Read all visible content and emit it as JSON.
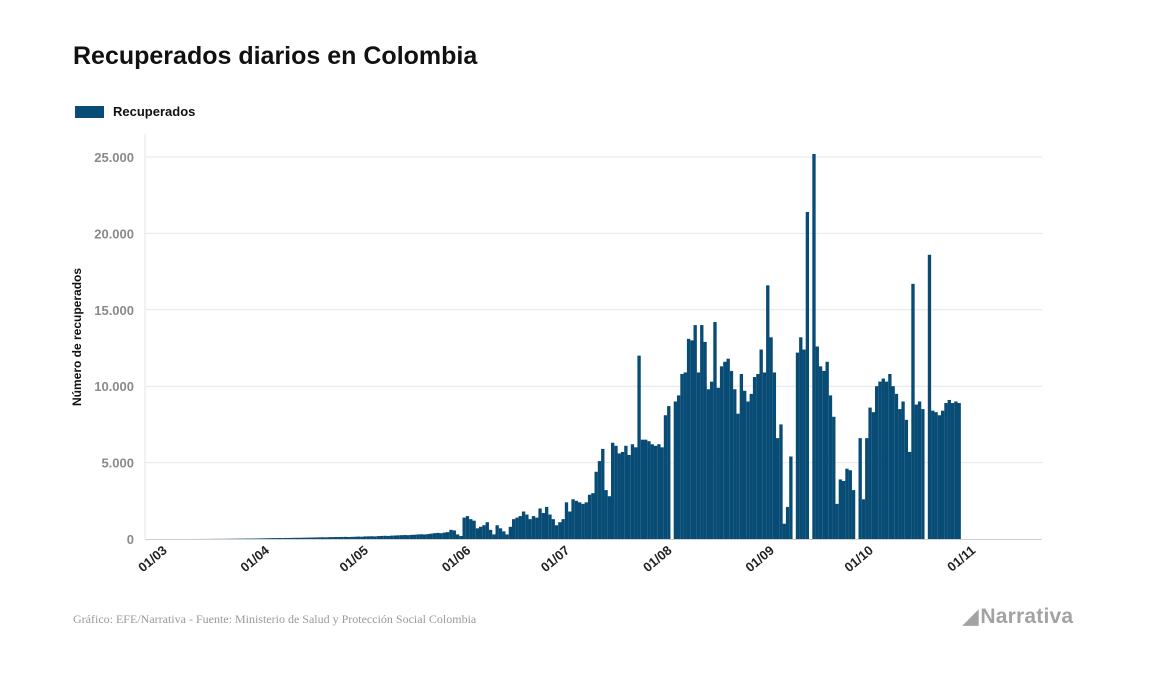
{
  "title": "Recuperados diarios en Colombia",
  "legend": {
    "label": "Recuperados",
    "color": "#084c75"
  },
  "footer": {
    "source": "Gráfico: EFE/Narrativa - Fuente: Ministerio de Salud y Protección Social Colombia",
    "logo": "Narrativa"
  },
  "chart_data": {
    "type": "bar",
    "x_start_date": "2020-03-01",
    "x_end_date": "2020-11-07",
    "xtick_labels": [
      "01/03",
      "01/04",
      "01/05",
      "01/06",
      "01/07",
      "01/08",
      "01/09",
      "01/10",
      "01/11"
    ],
    "ylabel": "Número de recuperados",
    "ylim": [
      0,
      25000
    ],
    "yticks": [
      0,
      5000,
      10000,
      15000,
      20000,
      25000
    ],
    "ytick_labels": [
      "0",
      "5.000",
      "10.000",
      "15.000",
      "20.000",
      "25.000"
    ],
    "grid": true,
    "series": [
      {
        "name": "Recuperados",
        "color": "#084c75",
        "values": [
          0,
          0,
          0,
          0,
          0,
          0,
          0,
          0,
          0,
          0,
          0,
          0,
          0,
          2,
          2,
          3,
          3,
          5,
          5,
          8,
          10,
          10,
          12,
          15,
          15,
          20,
          20,
          25,
          25,
          30,
          30,
          35,
          35,
          40,
          45,
          50,
          55,
          60,
          60,
          65,
          60,
          70,
          70,
          75,
          80,
          80,
          85,
          90,
          95,
          100,
          100,
          110,
          115,
          110,
          120,
          125,
          130,
          130,
          135,
          140,
          130,
          140,
          150,
          160,
          150,
          170,
          175,
          180,
          170,
          190,
          200,
          210,
          200,
          220,
          230,
          240,
          250,
          260,
          250,
          270,
          280,
          300,
          310,
          300,
          320,
          350,
          380,
          400,
          380,
          420,
          450,
          600,
          560,
          300,
          200,
          1400,
          1500,
          1300,
          1200,
          700,
          800,
          900,
          1100,
          600,
          300,
          900,
          700,
          500,
          300,
          800,
          1300,
          1400,
          1500,
          1800,
          1600,
          1300,
          1500,
          1400,
          2000,
          1700,
          2100,
          1600,
          1300,
          900,
          1100,
          1300,
          2400,
          1800,
          2600,
          2500,
          2400,
          2300,
          2400,
          2900,
          3000,
          4400,
          5100,
          5900,
          3200,
          2800,
          6300,
          6100,
          5600,
          5700,
          6100,
          5500,
          6200,
          6000,
          12000,
          6500,
          6500,
          6400,
          6200,
          6100,
          6200,
          6000,
          8100,
          8700,
          0,
          9000,
          9400,
          10800,
          10900,
          13100,
          13000,
          14000,
          10900,
          14000,
          12900,
          9800,
          10300,
          14200,
          9900,
          11300,
          11600,
          11800,
          11000,
          9800,
          8200,
          10800,
          9700,
          9000,
          9500,
          10600,
          10800,
          12400,
          10900,
          16600,
          13200,
          10900,
          6600,
          7500,
          1000,
          2100,
          5400,
          0,
          12200,
          13200,
          12400,
          21400,
          0,
          25200,
          12600,
          11300,
          11000,
          11600,
          9400,
          8000,
          2300,
          3900,
          3800,
          4600,
          4500,
          3200,
          0,
          6600,
          2600,
          6600,
          8600,
          8300,
          10000,
          10300,
          10500,
          10300,
          10800,
          10000,
          9500,
          8500,
          9000,
          7800,
          5700,
          16700,
          8800,
          9000,
          8500,
          0,
          18600,
          8400,
          8300,
          8100,
          8400,
          8900,
          9100,
          8900,
          9000,
          8900
        ]
      }
    ]
  }
}
